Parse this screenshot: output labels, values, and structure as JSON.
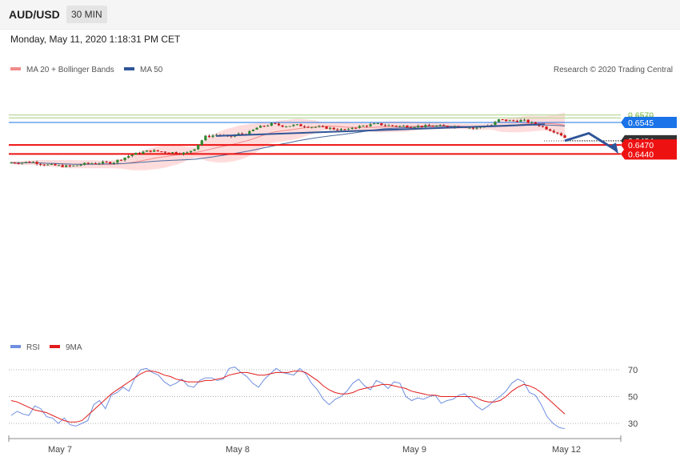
{
  "header": {
    "symbol": "AUD/USD",
    "timeframe": "30 MIN"
  },
  "datetime": "Monday, May 11, 2020 1:18:31 PM CET",
  "legend": {
    "ma20": "MA 20 + Bollinger Bands",
    "ma50": "MA 50",
    "credit": "Research © 2020 Trading Central"
  },
  "rsi_legend": {
    "rsi": "RSI",
    "ma9": "9MA"
  },
  "colors": {
    "up": "#2e8b2e",
    "down": "#dd1111",
    "band": "#ffc9c9",
    "ma20": "#f08a8a",
    "ma50": "#4a6aa0",
    "trend": "#2f5597",
    "support": "#ee1111",
    "resistance_green": "#7ab648",
    "resistance_blue": "#1a73e8",
    "current": "#333333",
    "rsi": "#6f8fe0",
    "rsi_ma": "#e21b1b"
  },
  "chart_data": [
    {
      "type": "candlestick",
      "title": "",
      "timeframe": "30 MIN",
      "x_labels": [
        "May 7",
        "May 8",
        "May 9",
        "May 12"
      ],
      "levels": [
        {
          "value": 0.657,
          "label": "0.6570",
          "kind": "resistance-2"
        },
        {
          "value": 0.656,
          "label": "0.6560",
          "kind": "resistance-1"
        },
        {
          "value": 0.6545,
          "label": "0.6545",
          "kind": "pivot"
        },
        {
          "value": 0.6484,
          "label": "0.6484",
          "kind": "last-price"
        },
        {
          "value": 0.647,
          "label": "0.6470",
          "kind": "support-1"
        },
        {
          "value": 0.644,
          "label": "0.6440",
          "kind": "support-2"
        }
      ],
      "trendline": [
        [
          0.65,
          0.6475
        ],
        [
          0.6539,
          0.6534
        ]
      ],
      "forecast_path": [
        0.6484,
        0.6509,
        0.644
      ],
      "series": [
        {
          "name": "MA 20 + Bollinger Bands",
          "kind": "ma20-bands"
        },
        {
          "name": "MA 50",
          "kind": "ma50"
        }
      ],
      "close_path": [
        [
          0,
          0.6411
        ],
        [
          0.04,
          0.6413
        ],
        [
          0.06,
          0.6404
        ],
        [
          0.1,
          0.6398
        ],
        [
          0.13,
          0.6409
        ],
        [
          0.17,
          0.6412
        ],
        [
          0.2,
          0.6437
        ],
        [
          0.23,
          0.6451
        ],
        [
          0.26,
          0.6446
        ],
        [
          0.29,
          0.6442
        ],
        [
          0.305,
          0.6461
        ],
        [
          0.32,
          0.6497
        ],
        [
          0.34,
          0.6504
        ],
        [
          0.36,
          0.6496
        ],
        [
          0.375,
          0.6506
        ],
        [
          0.39,
          0.6508
        ],
        [
          0.405,
          0.6527
        ],
        [
          0.43,
          0.654
        ],
        [
          0.45,
          0.6533
        ],
        [
          0.47,
          0.6536
        ],
        [
          0.5,
          0.653
        ],
        [
          0.52,
          0.6527
        ],
        [
          0.54,
          0.6521
        ],
        [
          0.555,
          0.652
        ],
        [
          0.56,
          0.6528
        ],
        [
          0.575,
          0.6532
        ],
        [
          0.6,
          0.654
        ],
        [
          0.62,
          0.6535
        ],
        [
          0.64,
          0.6533
        ],
        [
          0.67,
          0.6532
        ],
        [
          0.7,
          0.6533
        ],
        [
          0.72,
          0.6532
        ],
        [
          0.735,
          0.6533
        ],
        [
          0.75,
          0.653
        ],
        [
          0.76,
          0.6524
        ],
        [
          0.77,
          0.653
        ],
        [
          0.79,
          0.6537
        ],
        [
          0.8,
          0.6554
        ],
        [
          0.82,
          0.655
        ],
        [
          0.84,
          0.6552
        ],
        [
          0.855,
          0.6542
        ],
        [
          0.865,
          0.6537
        ],
        [
          0.88,
          0.6524
        ],
        [
          0.9,
          0.6508
        ],
        [
          0.915,
          0.6484
        ]
      ]
    },
    {
      "type": "line",
      "title": "",
      "yticks": [
        30,
        50,
        70
      ],
      "ylim": [
        20,
        78
      ],
      "series": [
        {
          "name": "RSI",
          "values": [
            36,
            39,
            37,
            36,
            43,
            41,
            35,
            34,
            30,
            34,
            29,
            28,
            30,
            32,
            44,
            47,
            41,
            51,
            53,
            57,
            54,
            64,
            70,
            71,
            68,
            66,
            61,
            58,
            60,
            63,
            58,
            57,
            62,
            64,
            64,
            62,
            63,
            71,
            72,
            68,
            65,
            60,
            57,
            63,
            67,
            71,
            68,
            67,
            66,
            71,
            67,
            60,
            55,
            48,
            44,
            48,
            50,
            54,
            60,
            63,
            58,
            55,
            62,
            60,
            56,
            61,
            60,
            50,
            47,
            49,
            48,
            50,
            51,
            45,
            47,
            48,
            51,
            52,
            48,
            43,
            40,
            43,
            47,
            50,
            54,
            60,
            63,
            61,
            53,
            51,
            44,
            35,
            30,
            27,
            26
          ]
        },
        {
          "name": "9MA",
          "values": [
            47,
            46,
            44,
            42,
            40,
            39,
            38,
            36,
            34,
            32,
            31,
            31,
            32,
            36,
            40,
            44,
            48,
            52,
            55,
            58,
            61,
            64,
            67,
            69,
            69,
            68,
            66,
            65,
            63,
            62,
            61,
            61,
            61,
            62,
            62,
            63,
            64,
            66,
            67,
            68,
            68,
            67,
            66,
            66,
            67,
            68,
            68,
            68,
            69,
            69,
            68,
            65,
            62,
            58,
            55,
            53,
            52,
            52,
            53,
            55,
            56,
            57,
            58,
            59,
            59,
            58,
            57,
            56,
            54,
            53,
            52,
            51,
            51,
            50,
            50,
            50,
            50,
            50,
            50,
            49,
            47,
            46,
            46,
            47,
            50,
            54,
            57,
            59,
            58,
            56,
            53,
            49,
            45,
            41,
            37
          ]
        }
      ]
    }
  ]
}
